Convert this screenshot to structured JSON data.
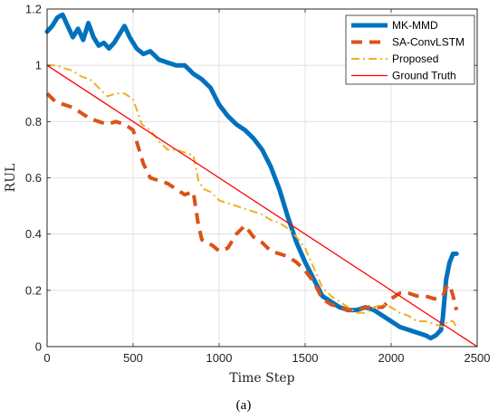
{
  "chart_data": {
    "type": "line",
    "title": "",
    "xlabel": "Time Step",
    "ylabel": "RUL",
    "caption": "(a)",
    "xlim": [
      0,
      2500
    ],
    "ylim": [
      0,
      1.2
    ],
    "xticks": [
      0,
      500,
      1000,
      1500,
      2000,
      2500
    ],
    "yticks": [
      0,
      0.2,
      0.4,
      0.6,
      0.8,
      1,
      1.2
    ],
    "xtick_labels": [
      "0",
      "500",
      "1000",
      "1500",
      "2000",
      "2500"
    ],
    "ytick_labels": [
      "0",
      "0.2",
      "0.4",
      "0.6",
      "0.8",
      "1",
      "1.2"
    ],
    "grid": true,
    "legend_position": "top-right",
    "series": [
      {
        "name": "MK-MMD",
        "color": "#0072BD",
        "style": "solid-thick",
        "x": [
          0,
          30,
          60,
          90,
          120,
          150,
          180,
          210,
          240,
          270,
          300,
          330,
          360,
          390,
          420,
          450,
          480,
          520,
          560,
          600,
          650,
          700,
          750,
          800,
          850,
          900,
          950,
          1000,
          1050,
          1100,
          1150,
          1200,
          1250,
          1300,
          1350,
          1400,
          1450,
          1500,
          1550,
          1600,
          1650,
          1700,
          1750,
          1800,
          1850,
          1900,
          1950,
          2000,
          2050,
          2100,
          2150,
          2200,
          2230,
          2260,
          2290,
          2300,
          2310,
          2320,
          2340,
          2360,
          2380
        ],
        "y": [
          1.12,
          1.14,
          1.17,
          1.18,
          1.14,
          1.1,
          1.13,
          1.09,
          1.15,
          1.1,
          1.07,
          1.08,
          1.06,
          1.08,
          1.11,
          1.14,
          1.1,
          1.06,
          1.04,
          1.05,
          1.02,
          1.01,
          1.0,
          1.0,
          0.97,
          0.95,
          0.92,
          0.86,
          0.82,
          0.79,
          0.77,
          0.74,
          0.7,
          0.64,
          0.56,
          0.46,
          0.37,
          0.3,
          0.24,
          0.18,
          0.16,
          0.14,
          0.13,
          0.13,
          0.14,
          0.13,
          0.11,
          0.09,
          0.07,
          0.06,
          0.05,
          0.04,
          0.03,
          0.04,
          0.06,
          0.1,
          0.17,
          0.24,
          0.3,
          0.33,
          0.33
        ]
      },
      {
        "name": "SA-ConvLSTM",
        "color": "#D95319",
        "style": "dashed-thick",
        "x": [
          0,
          50,
          100,
          150,
          200,
          250,
          300,
          350,
          400,
          450,
          500,
          530,
          560,
          600,
          650,
          700,
          750,
          800,
          850,
          880,
          900,
          930,
          960,
          1000,
          1050,
          1100,
          1150,
          1200,
          1250,
          1300,
          1350,
          1400,
          1450,
          1500,
          1550,
          1600,
          1650,
          1700,
          1750,
          1800,
          1850,
          1900,
          1950,
          2000,
          2050,
          2100,
          2150,
          2200,
          2250,
          2300,
          2320,
          2340,
          2360,
          2380
        ],
        "y": [
          0.9,
          0.87,
          0.86,
          0.85,
          0.83,
          0.81,
          0.8,
          0.79,
          0.8,
          0.79,
          0.77,
          0.71,
          0.65,
          0.6,
          0.59,
          0.58,
          0.56,
          0.54,
          0.55,
          0.43,
          0.38,
          0.37,
          0.36,
          0.34,
          0.35,
          0.4,
          0.43,
          0.39,
          0.37,
          0.34,
          0.33,
          0.32,
          0.3,
          0.27,
          0.23,
          0.17,
          0.15,
          0.14,
          0.13,
          0.13,
          0.14,
          0.14,
          0.14,
          0.17,
          0.19,
          0.19,
          0.18,
          0.18,
          0.17,
          0.18,
          0.21,
          0.22,
          0.18,
          0.13
        ]
      },
      {
        "name": "Proposed",
        "color": "#EDB120",
        "style": "dash-dot",
        "x": [
          0,
          50,
          100,
          150,
          200,
          250,
          300,
          350,
          400,
          450,
          500,
          550,
          600,
          650,
          700,
          750,
          800,
          850,
          880,
          910,
          950,
          1000,
          1050,
          1100,
          1150,
          1200,
          1250,
          1300,
          1350,
          1400,
          1450,
          1500,
          1550,
          1600,
          1650,
          1700,
          1750,
          1800,
          1850,
          1900,
          1950,
          2000,
          2050,
          2100,
          2150,
          2200,
          2250,
          2300,
          2330,
          2360,
          2380
        ],
        "y": [
          1.0,
          1.0,
          0.99,
          0.98,
          0.96,
          0.95,
          0.92,
          0.89,
          0.9,
          0.9,
          0.88,
          0.79,
          0.77,
          0.73,
          0.7,
          0.7,
          0.69,
          0.68,
          0.59,
          0.56,
          0.55,
          0.52,
          0.51,
          0.5,
          0.49,
          0.48,
          0.47,
          0.45,
          0.44,
          0.42,
          0.39,
          0.35,
          0.28,
          0.21,
          0.18,
          0.16,
          0.14,
          0.12,
          0.12,
          0.14,
          0.15,
          0.14,
          0.12,
          0.11,
          0.09,
          0.09,
          0.08,
          0.07,
          0.09,
          0.09,
          0.07
        ]
      },
      {
        "name": "Ground Truth",
        "color": "#FF0000",
        "style": "solid-thin",
        "x": [
          0,
          2500
        ],
        "y": [
          1.0,
          0.0
        ]
      }
    ]
  }
}
